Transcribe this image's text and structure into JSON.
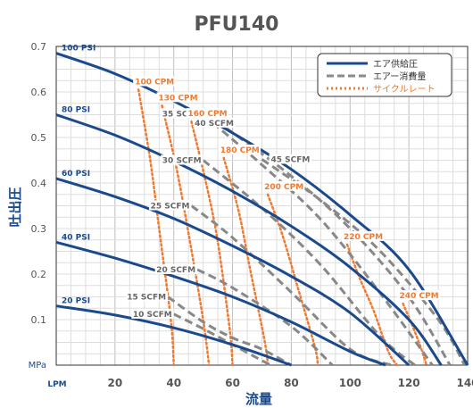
{
  "chart_data": {
    "type": "line",
    "title": "PFU140",
    "xlabel": "流量",
    "ylabel": "吐出圧",
    "x_unit": "LPM",
    "y_unit": "MPa",
    "xlim": [
      0,
      140
    ],
    "ylim": [
      0,
      0.7
    ],
    "xticks": [
      20,
      40,
      60,
      80,
      100,
      120,
      140
    ],
    "yticks": [
      0.1,
      0.2,
      0.3,
      0.4,
      0.5,
      0.6,
      0.7
    ],
    "grid": true,
    "legend_position": "top-right",
    "legend": [
      {
        "label": "エア供給圧",
        "style": "solid",
        "color": "#1a4a8c"
      },
      {
        "label": "エアー消費量",
        "style": "dashed",
        "color": "#888888"
      },
      {
        "label": "サイクルレート",
        "style": "dotted",
        "color": "#f07a30"
      }
    ],
    "series": [
      {
        "name": "100 PSI",
        "group": "supply",
        "x": [
          0,
          20,
          40,
          60,
          80,
          100,
          120,
          140
        ],
        "y": [
          0.685,
          0.64,
          0.58,
          0.51,
          0.43,
          0.33,
          0.21,
          0.0
        ]
      },
      {
        "name": "80 PSI",
        "group": "supply",
        "x": [
          0,
          20,
          40,
          60,
          80,
          100,
          120,
          131
        ],
        "y": [
          0.55,
          0.505,
          0.448,
          0.382,
          0.305,
          0.215,
          0.1,
          0.0
        ]
      },
      {
        "name": "60 PSI",
        "group": "supply",
        "x": [
          0,
          20,
          40,
          60,
          80,
          100,
          120
        ],
        "y": [
          0.41,
          0.37,
          0.322,
          0.262,
          0.195,
          0.115,
          0.0
        ]
      },
      {
        "name": "40 PSI",
        "group": "supply",
        "x": [
          0,
          20,
          40,
          60,
          80,
          100,
          112
        ],
        "y": [
          0.27,
          0.235,
          0.195,
          0.15,
          0.095,
          0.03,
          0.0
        ]
      },
      {
        "name": "20 PSI",
        "group": "supply",
        "x": [
          0,
          20,
          40,
          60,
          80
        ],
        "y": [
          0.13,
          0.11,
          0.082,
          0.045,
          0.0
        ]
      },
      {
        "name": "45 SCFM",
        "group": "air",
        "x": [
          70,
          90,
          110,
          130,
          139
        ],
        "y": [
          0.452,
          0.362,
          0.252,
          0.1,
          0.0
        ]
      },
      {
        "name": "40 SCFM",
        "group": "air",
        "x": [
          58,
          80,
          100,
          120,
          134
        ],
        "y": [
          0.52,
          0.415,
          0.3,
          0.15,
          0.0
        ]
      },
      {
        "name": "35 SCFM",
        "group": "air",
        "x": [
          50,
          70,
          90,
          110,
          128
        ],
        "y": [
          0.55,
          0.44,
          0.32,
          0.16,
          0.0
        ]
      },
      {
        "name": "30 SCFM",
        "group": "air",
        "x": [
          50,
          70,
          90,
          110,
          122
        ],
        "y": [
          0.45,
          0.345,
          0.22,
          0.065,
          0.0
        ]
      },
      {
        "name": "25 SCFM",
        "group": "air",
        "x": [
          46,
          60,
          80,
          100,
          114
        ],
        "y": [
          0.35,
          0.28,
          0.16,
          0.035,
          0.0
        ]
      },
      {
        "name": "20 SCFM",
        "group": "air",
        "x": [
          48,
          60,
          80,
          94
        ],
        "y": [
          0.21,
          0.17,
          0.085,
          0.0
        ]
      },
      {
        "name": "15 SCFM",
        "group": "air",
        "x": [
          38,
          50,
          60,
          70,
          80
        ],
        "y": [
          0.15,
          0.095,
          0.06,
          0.035,
          0.0
        ]
      },
      {
        "name": "10 SCFM",
        "group": "air",
        "x": [
          40,
          50,
          60,
          70,
          73
        ],
        "y": [
          0.112,
          0.08,
          0.045,
          0.01,
          0.0
        ]
      },
      {
        "name": "100 CPM",
        "group": "cycle",
        "x": [
          28,
          32,
          35,
          39,
          40
        ],
        "y": [
          0.605,
          0.45,
          0.3,
          0.1,
          0.0
        ]
      },
      {
        "name": "130 CPM",
        "group": "cycle",
        "x": [
          36,
          41,
          45,
          50,
          52
        ],
        "y": [
          0.57,
          0.43,
          0.29,
          0.1,
          0.0
        ]
      },
      {
        "name": "160 CPM",
        "group": "cycle",
        "x": [
          46,
          51,
          55,
          59,
          60
        ],
        "y": [
          0.535,
          0.4,
          0.27,
          0.08,
          0.0
        ]
      },
      {
        "name": "180 CPM",
        "group": "cycle",
        "x": [
          57,
          62,
          66,
          71,
          72
        ],
        "y": [
          0.455,
          0.34,
          0.21,
          0.05,
          0.0
        ]
      },
      {
        "name": "200 CPM",
        "group": "cycle",
        "x": [
          72,
          77,
          82,
          88,
          89
        ],
        "y": [
          0.375,
          0.285,
          0.175,
          0.04,
          0.0
        ]
      },
      {
        "name": "220 CPM",
        "group": "cycle",
        "x": [
          99,
          103,
          108,
          113,
          116
        ],
        "y": [
          0.265,
          0.195,
          0.12,
          0.03,
          0.0
        ]
      },
      {
        "name": "240 CPM",
        "group": "cycle",
        "x": [
          118,
          121,
          124,
          126
        ],
        "y": [
          0.135,
          0.09,
          0.04,
          0.0
        ]
      }
    ],
    "colors": {
      "supply": "#1a4a8c",
      "air": "#888888",
      "cycle": "#f07a30",
      "title": "#555555",
      "axis_title": "#1a4a8c"
    }
  }
}
